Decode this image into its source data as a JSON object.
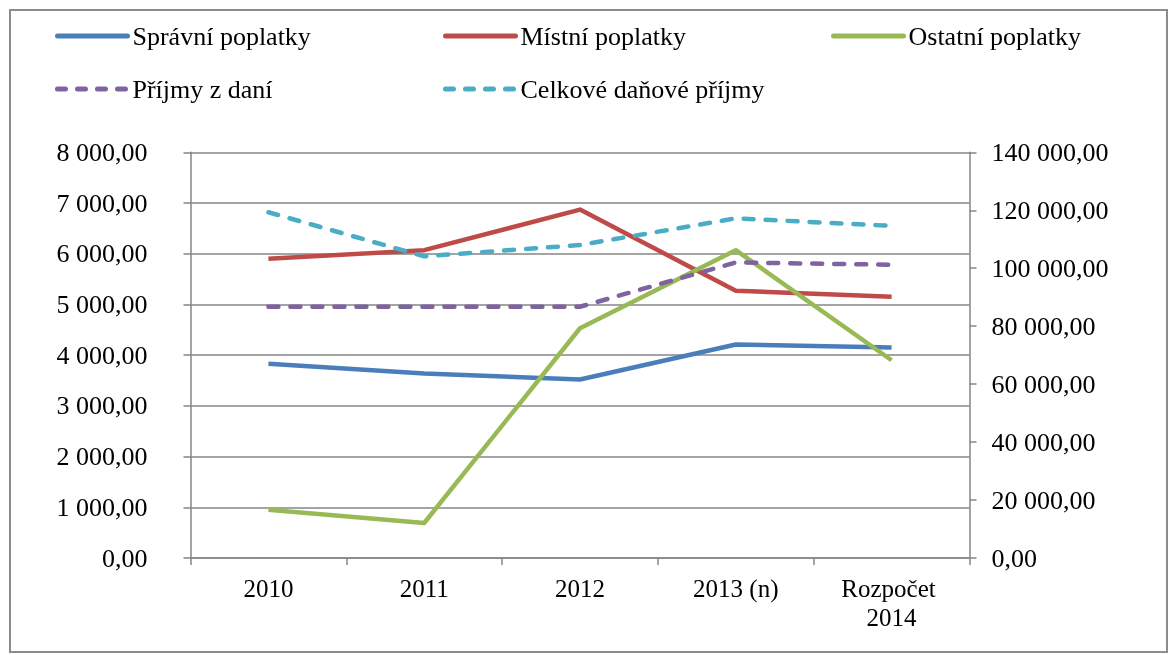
{
  "chart_data": {
    "type": "line",
    "categories": [
      "2010",
      "2011",
      "2012",
      "2013 (n)",
      "Rozpočet 2014"
    ],
    "series": [
      {
        "name": "Správní poplatky",
        "color": "#4a7ebb",
        "values": [
          3830,
          3640,
          3520,
          4210,
          4150
        ]
      },
      {
        "name": "Místní poplatky",
        "color": "#be4b48",
        "values": [
          5900,
          6070,
          6870,
          5270,
          5150
        ]
      },
      {
        "name": "Ostatní poplatky",
        "color": "#98b954",
        "values": [
          950,
          690,
          4530,
          6070,
          3900
        ]
      },
      {
        "name": "Příjmy z daní",
        "color": "#7f63a1",
        "values": [
          86700,
          86700,
          86700,
          102000,
          101200
        ],
        "axis": "y2",
        "line_style": "dashed"
      },
      {
        "name": "Celkové daňové příjmy",
        "color": "#4bacc6",
        "values": [
          119300,
          104100,
          108000,
          117200,
          114600
        ],
        "axis": "y2",
        "line_style": "dashed"
      }
    ],
    "ylim": [
      0,
      8000
    ],
    "yticks": [
      {
        "value": 0,
        "label": "0,00"
      },
      {
        "value": 1000,
        "label": "1 000,00"
      },
      {
        "value": 2000,
        "label": "2 000,00"
      },
      {
        "value": 3000,
        "label": "3 000,00"
      },
      {
        "value": 4000,
        "label": "4 000,00"
      },
      {
        "value": 5000,
        "label": "5 000,00"
      },
      {
        "value": 6000,
        "label": "6 000,00"
      },
      {
        "value": 7000,
        "label": "7 000,00"
      },
      {
        "value": 8000,
        "label": "8 000,00"
      }
    ],
    "y2lim": [
      0,
      140000
    ],
    "y2ticks": [
      {
        "value": 0,
        "label": "0,00"
      },
      {
        "value": 20000,
        "label": "20 000,00"
      },
      {
        "value": 40000,
        "label": "40 000,00"
      },
      {
        "value": 60000,
        "label": "60 000,00"
      },
      {
        "value": 80000,
        "label": "80 000,00"
      },
      {
        "value": 100000,
        "label": "100 000,00"
      },
      {
        "value": 120000,
        "label": "120 000,00"
      },
      {
        "value": 140000,
        "label": "140 000,00"
      }
    ],
    "grid": "y",
    "legend": "top",
    "marker": "none",
    "line_style": "solid"
  }
}
